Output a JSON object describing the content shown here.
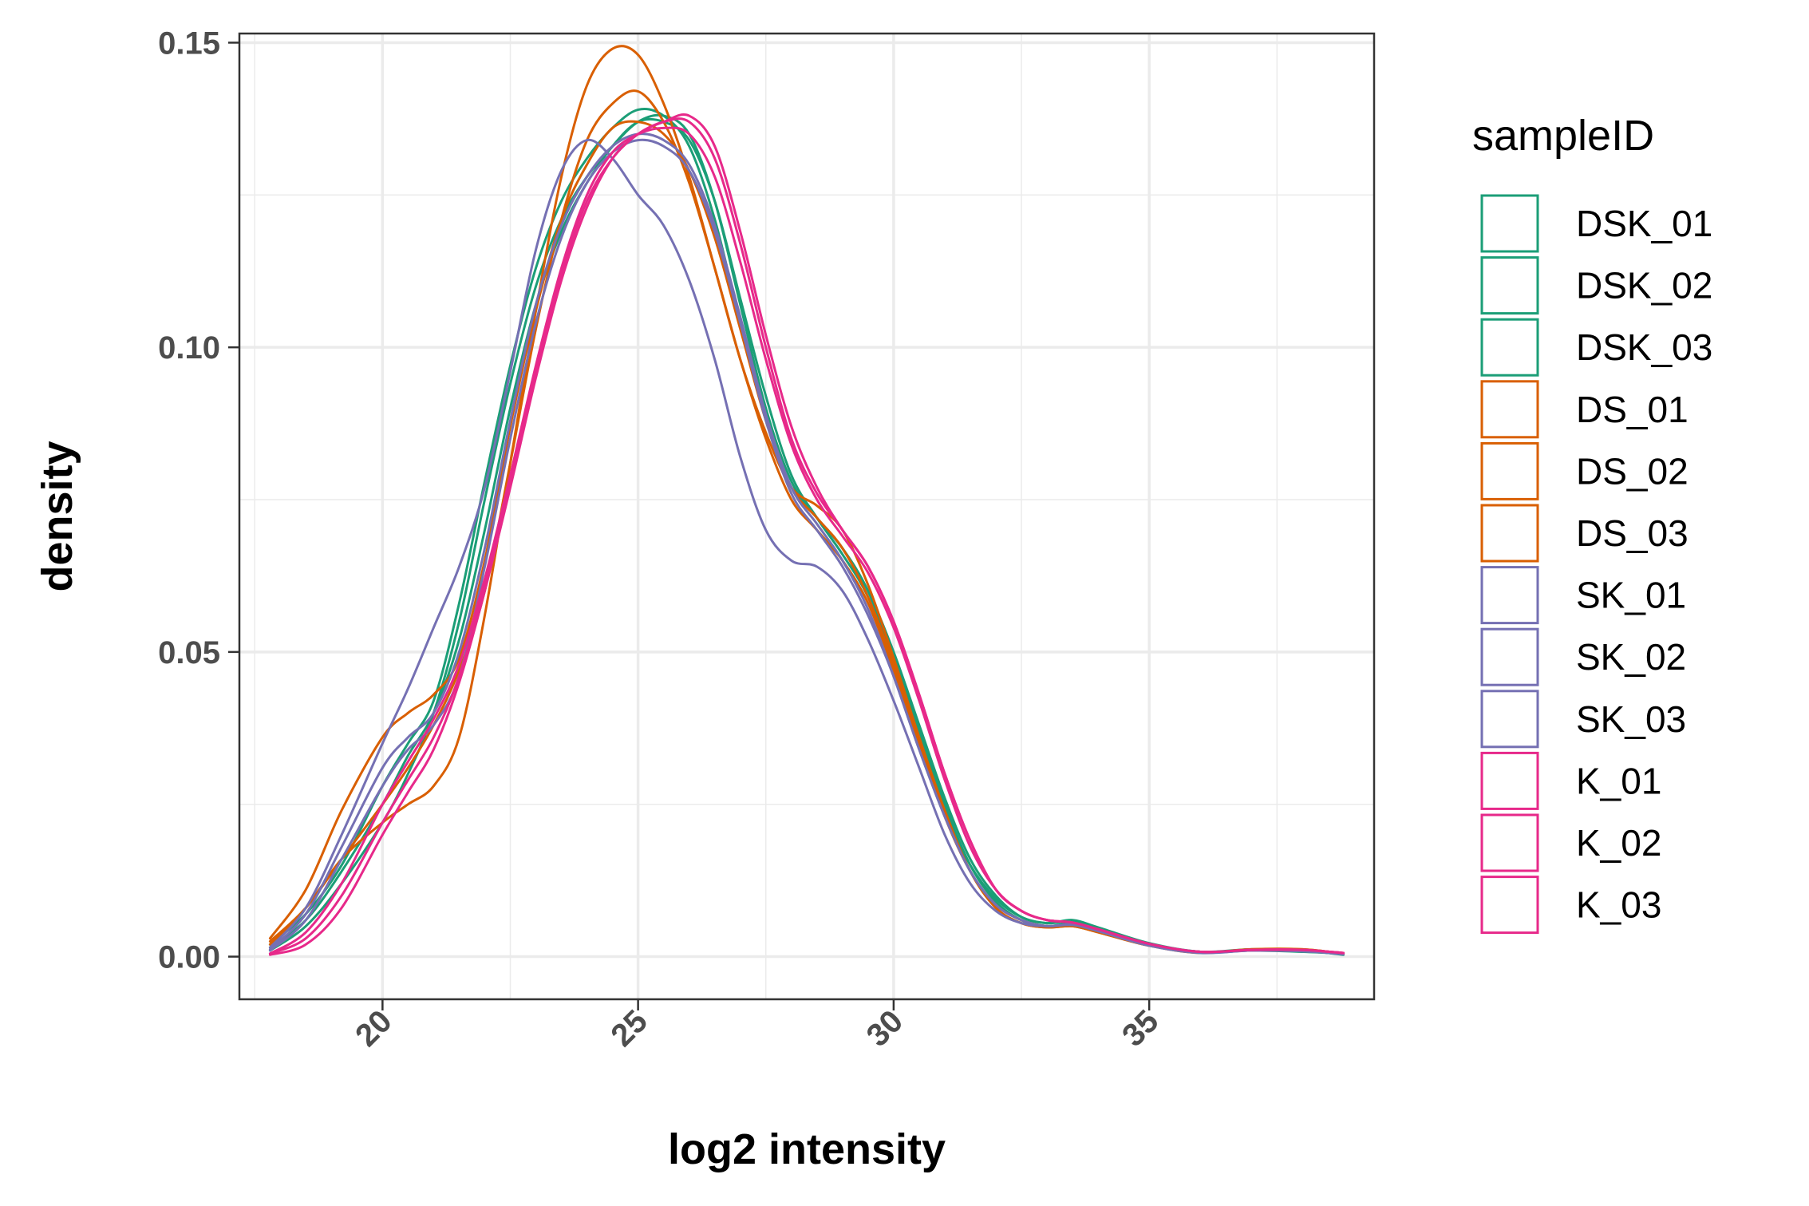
{
  "chart_data": {
    "type": "line",
    "title": "",
    "xlabel": "log2 intensity",
    "ylabel": "density",
    "xlim": [
      17.2,
      39.4
    ],
    "ylim": [
      -0.007,
      0.1515
    ],
    "x_ticks": [
      20,
      25,
      30,
      35
    ],
    "x_tick_labels": [
      "20",
      "25",
      "30",
      "35"
    ],
    "y_ticks": [
      0,
      0.05,
      0.1,
      0.15
    ],
    "y_tick_labels": [
      "0.00",
      "0.05",
      "0.10",
      "0.15"
    ],
    "grid": true,
    "legend": {
      "title": "sampleID",
      "position": "right"
    },
    "series": [
      {
        "name": "DSK_01",
        "color": "#1b9e77",
        "x": [
          17.8,
          18.5,
          19.2,
          20,
          20.5,
          21,
          21.5,
          22,
          22.5,
          23,
          23.5,
          24,
          24.5,
          25,
          25.5,
          26,
          26.5,
          27,
          27.5,
          28,
          28.5,
          29,
          29.5,
          30,
          30.5,
          31,
          31.5,
          32,
          32.5,
          33,
          33.5,
          34,
          35,
          36,
          37,
          38,
          38.8
        ],
        "y": [
          0.002,
          0.007,
          0.015,
          0.028,
          0.035,
          0.042,
          0.058,
          0.078,
          0.097,
          0.113,
          0.124,
          0.131,
          0.136,
          0.139,
          0.138,
          0.133,
          0.121,
          0.104,
          0.088,
          0.077,
          0.072,
          0.067,
          0.06,
          0.049,
          0.037,
          0.025,
          0.015,
          0.009,
          0.006,
          0.005,
          0.0055,
          0.0045,
          0.002,
          0.0008,
          0.001,
          0.0008,
          0.0005
        ]
      },
      {
        "name": "DSK_02",
        "color": "#1b9e77",
        "x": [
          17.8,
          18.5,
          19.2,
          20,
          20.5,
          21,
          21.5,
          22,
          22.5,
          23,
          23.5,
          24,
          24.5,
          25,
          25.5,
          26,
          26.5,
          27,
          27.5,
          28,
          28.5,
          29,
          29.5,
          30,
          30.5,
          31,
          31.5,
          32,
          32.5,
          33,
          33.5,
          34,
          35,
          36,
          37,
          38,
          38.8
        ],
        "y": [
          0.001,
          0.005,
          0.012,
          0.022,
          0.03,
          0.04,
          0.055,
          0.075,
          0.094,
          0.11,
          0.121,
          0.128,
          0.133,
          0.137,
          0.138,
          0.135,
          0.124,
          0.107,
          0.09,
          0.078,
          0.072,
          0.067,
          0.06,
          0.05,
          0.038,
          0.026,
          0.016,
          0.01,
          0.0065,
          0.0055,
          0.006,
          0.0048,
          0.0022,
          0.0008,
          0.0012,
          0.001,
          0.0003
        ]
      },
      {
        "name": "DSK_03",
        "color": "#1b9e77",
        "x": [
          17.8,
          18.5,
          19.2,
          20,
          20.5,
          21,
          21.5,
          22,
          22.5,
          23,
          23.5,
          24,
          24.5,
          25,
          25.5,
          26,
          26.5,
          27,
          27.5,
          28,
          28.5,
          29,
          29.5,
          30,
          30.5,
          31,
          31.5,
          32,
          32.5,
          33,
          33.5,
          34,
          35,
          36,
          37,
          38,
          38.8
        ],
        "y": [
          0.0015,
          0.006,
          0.014,
          0.025,
          0.033,
          0.04,
          0.052,
          0.07,
          0.09,
          0.107,
          0.119,
          0.127,
          0.133,
          0.137,
          0.137,
          0.134,
          0.124,
          0.108,
          0.092,
          0.079,
          0.072,
          0.066,
          0.059,
          0.048,
          0.036,
          0.024,
          0.015,
          0.0095,
          0.0065,
          0.0055,
          0.0058,
          0.0046,
          0.002,
          0.0008,
          0.001,
          0.0009,
          0.0004
        ]
      },
      {
        "name": "DS_01",
        "color": "#d95f02",
        "x": [
          17.8,
          18.5,
          19.2,
          20,
          20.5,
          21,
          21.5,
          22,
          22.5,
          23,
          23.5,
          24,
          24.5,
          25,
          25.5,
          26,
          26.5,
          27,
          27.5,
          28,
          28.5,
          29,
          29.5,
          30,
          30.5,
          31,
          31.5,
          32,
          32.5,
          33,
          33.5,
          34,
          35,
          36,
          37,
          38,
          38.8
        ],
        "y": [
          0.002,
          0.008,
          0.016,
          0.022,
          0.025,
          0.028,
          0.036,
          0.056,
          0.081,
          0.106,
          0.128,
          0.143,
          0.149,
          0.148,
          0.14,
          0.128,
          0.113,
          0.098,
          0.086,
          0.077,
          0.074,
          0.07,
          0.061,
          0.049,
          0.036,
          0.024,
          0.014,
          0.008,
          0.0055,
          0.0048,
          0.005,
          0.004,
          0.0018,
          0.0006,
          0.0012,
          0.0012,
          0.0005
        ]
      },
      {
        "name": "DS_02",
        "color": "#d95f02",
        "x": [
          17.8,
          18.5,
          19.2,
          20,
          20.5,
          21,
          21.5,
          22,
          22.5,
          23,
          23.5,
          24,
          24.5,
          25,
          25.5,
          26,
          26.5,
          27,
          27.5,
          28,
          28.5,
          29,
          29.5,
          30,
          30.5,
          31,
          31.5,
          32,
          32.5,
          33,
          33.5,
          34,
          35,
          36,
          37,
          38,
          38.8
        ],
        "y": [
          0.003,
          0.011,
          0.024,
          0.036,
          0.04,
          0.043,
          0.049,
          0.065,
          0.087,
          0.106,
          0.121,
          0.13,
          0.136,
          0.137,
          0.135,
          0.129,
          0.118,
          0.103,
          0.088,
          0.077,
          0.072,
          0.067,
          0.059,
          0.048,
          0.035,
          0.023,
          0.014,
          0.008,
          0.0055,
          0.0048,
          0.005,
          0.004,
          0.0018,
          0.0007,
          0.0012,
          0.0012,
          0.0005
        ]
      },
      {
        "name": "DS_03",
        "color": "#d95f02",
        "x": [
          17.8,
          18.5,
          19.2,
          20,
          20.5,
          21,
          21.5,
          22,
          22.5,
          23,
          23.5,
          24,
          24.5,
          25,
          25.5,
          26,
          26.5,
          27,
          27.5,
          28,
          28.5,
          29,
          29.5,
          30,
          30.5,
          31,
          31.5,
          32,
          32.5,
          33,
          33.5,
          34,
          35,
          36,
          37,
          38,
          38.8
        ],
        "y": [
          0.0025,
          0.008,
          0.016,
          0.025,
          0.031,
          0.038,
          0.047,
          0.06,
          0.081,
          0.103,
          0.121,
          0.134,
          0.14,
          0.142,
          0.137,
          0.127,
          0.113,
          0.098,
          0.085,
          0.075,
          0.07,
          0.065,
          0.058,
          0.047,
          0.035,
          0.023,
          0.014,
          0.0085,
          0.006,
          0.005,
          0.0052,
          0.0042,
          0.0019,
          0.0007,
          0.0011,
          0.001,
          0.0005
        ]
      },
      {
        "name": "SK_01",
        "color": "#7570b3",
        "x": [
          17.8,
          18.5,
          19.2,
          20,
          20.5,
          21,
          21.5,
          22,
          22.5,
          23,
          23.5,
          24,
          24.5,
          25,
          25.5,
          26,
          26.5,
          27,
          27.5,
          28,
          28.5,
          29,
          29.5,
          30,
          30.5,
          31,
          31.5,
          32,
          32.5,
          33,
          33.5,
          34,
          35,
          36,
          37,
          38,
          38.8
        ],
        "y": [
          0.0015,
          0.008,
          0.02,
          0.035,
          0.044,
          0.054,
          0.064,
          0.077,
          0.096,
          0.116,
          0.129,
          0.134,
          0.131,
          0.125,
          0.12,
          0.111,
          0.098,
          0.082,
          0.07,
          0.065,
          0.064,
          0.06,
          0.052,
          0.042,
          0.031,
          0.02,
          0.012,
          0.0075,
          0.0055,
          0.005,
          0.0052,
          0.0042,
          0.0018,
          0.0006,
          0.001,
          0.0009,
          0.0005
        ]
      },
      {
        "name": "SK_02",
        "color": "#7570b3",
        "x": [
          17.8,
          18.5,
          19.2,
          20,
          20.5,
          21,
          21.5,
          22,
          22.5,
          23,
          23.5,
          24,
          24.5,
          25,
          25.5,
          26,
          26.5,
          27,
          27.5,
          28,
          28.5,
          29,
          29.5,
          30,
          30.5,
          31,
          31.5,
          32,
          32.5,
          33,
          33.5,
          34,
          35,
          36,
          37,
          38,
          38.8
        ],
        "y": [
          0.001,
          0.006,
          0.016,
          0.028,
          0.034,
          0.038,
          0.046,
          0.064,
          0.085,
          0.104,
          0.118,
          0.127,
          0.132,
          0.134,
          0.133,
          0.129,
          0.119,
          0.104,
          0.088,
          0.076,
          0.07,
          0.064,
          0.056,
          0.046,
          0.034,
          0.023,
          0.014,
          0.0085,
          0.006,
          0.005,
          0.0053,
          0.0043,
          0.002,
          0.0007,
          0.001,
          0.0009,
          0.0004
        ]
      },
      {
        "name": "SK_03",
        "color": "#7570b3",
        "x": [
          17.8,
          18.5,
          19.2,
          20,
          20.5,
          21,
          21.5,
          22,
          22.5,
          23,
          23.5,
          24,
          24.5,
          25,
          25.5,
          26,
          26.5,
          27,
          27.5,
          28,
          28.5,
          29,
          29.5,
          30,
          30.5,
          31,
          31.5,
          32,
          32.5,
          33,
          33.5,
          34,
          35,
          36,
          37,
          38,
          38.8
        ],
        "y": [
          0.0012,
          0.007,
          0.018,
          0.031,
          0.036,
          0.04,
          0.05,
          0.067,
          0.088,
          0.107,
          0.12,
          0.128,
          0.133,
          0.135,
          0.134,
          0.13,
          0.12,
          0.105,
          0.089,
          0.077,
          0.071,
          0.065,
          0.057,
          0.046,
          0.034,
          0.023,
          0.014,
          0.0085,
          0.006,
          0.005,
          0.0053,
          0.0043,
          0.002,
          0.0007,
          0.001,
          0.0009,
          0.0004
        ]
      },
      {
        "name": "K_01",
        "color": "#e7298a",
        "x": [
          17.8,
          18.5,
          19.2,
          20,
          20.5,
          21,
          21.5,
          22,
          22.5,
          23,
          23.5,
          24,
          24.5,
          25,
          25.5,
          26,
          26.5,
          27,
          27.5,
          28,
          28.5,
          29,
          29.5,
          30,
          30.5,
          31,
          31.5,
          32,
          32.5,
          33,
          33.5,
          34,
          35,
          36,
          37,
          38,
          38.8
        ],
        "y": [
          0.0005,
          0.004,
          0.012,
          0.025,
          0.032,
          0.039,
          0.048,
          0.062,
          0.079,
          0.097,
          0.113,
          0.125,
          0.132,
          0.135,
          0.136,
          0.135,
          0.128,
          0.114,
          0.098,
          0.084,
          0.075,
          0.069,
          0.063,
          0.054,
          0.042,
          0.029,
          0.018,
          0.011,
          0.0075,
          0.006,
          0.0056,
          0.0045,
          0.0021,
          0.0008,
          0.0011,
          0.0011,
          0.0006
        ]
      },
      {
        "name": "K_02",
        "color": "#e7298a",
        "x": [
          17.8,
          18.5,
          19.2,
          20,
          20.5,
          21,
          21.5,
          22,
          22.5,
          23,
          23.5,
          24,
          24.5,
          25,
          25.5,
          26,
          26.5,
          27,
          27.5,
          28,
          28.5,
          29,
          29.5,
          30,
          30.5,
          31,
          31.5,
          32,
          32.5,
          33,
          33.5,
          34,
          35,
          36,
          37,
          38,
          38.8
        ],
        "y": [
          0.0005,
          0.003,
          0.01,
          0.022,
          0.029,
          0.036,
          0.046,
          0.061,
          0.078,
          0.096,
          0.112,
          0.124,
          0.131,
          0.135,
          0.137,
          0.137,
          0.131,
          0.117,
          0.1,
          0.085,
          0.076,
          0.07,
          0.064,
          0.055,
          0.043,
          0.03,
          0.019,
          0.011,
          0.0075,
          0.006,
          0.0056,
          0.0045,
          0.0021,
          0.0008,
          0.0011,
          0.0011,
          0.0006
        ]
      },
      {
        "name": "K_03",
        "color": "#e7298a",
        "x": [
          17.8,
          18.5,
          19.2,
          20,
          20.5,
          21,
          21.5,
          22,
          22.5,
          23,
          23.5,
          24,
          24.5,
          25,
          25.5,
          26,
          26.5,
          27,
          27.5,
          28,
          28.5,
          29,
          29.5,
          30,
          30.5,
          31,
          31.5,
          32,
          32.5,
          33,
          33.5,
          34,
          35,
          36,
          37,
          38,
          38.8
        ],
        "y": [
          0.0003,
          0.002,
          0.008,
          0.02,
          0.027,
          0.034,
          0.045,
          0.06,
          0.077,
          0.095,
          0.111,
          0.123,
          0.131,
          0.135,
          0.137,
          0.138,
          0.133,
          0.119,
          0.102,
          0.087,
          0.077,
          0.07,
          0.064,
          0.055,
          0.043,
          0.03,
          0.019,
          0.011,
          0.0075,
          0.006,
          0.0056,
          0.0045,
          0.0021,
          0.0008,
          0.0011,
          0.0011,
          0.0006
        ]
      }
    ]
  }
}
